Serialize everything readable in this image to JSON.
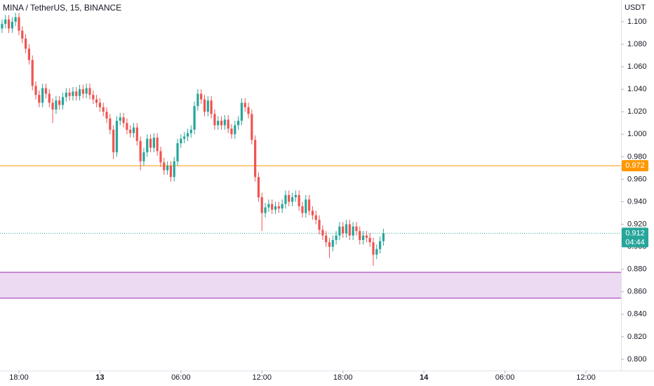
{
  "chart_data": {
    "type": "candlestick",
    "title": "MINA / TetherUS, 15, BINANCE",
    "unit": "USDT",
    "up_color": "#26a69a",
    "down_color": "#ef5350",
    "open": [
      1.094,
      1.098,
      1.102,
      1.094,
      1.1,
      1.104,
      1.092,
      1.085,
      1.076,
      1.066,
      1.043,
      1.035,
      1.028,
      1.041,
      1.036,
      1.028,
      1.022,
      1.03,
      1.026,
      1.033,
      1.037,
      1.034,
      1.038,
      1.034,
      1.04,
      1.036,
      1.041,
      1.035,
      1.031,
      1.028,
      1.024,
      1.02,
      1.014,
      1.004,
      0.984,
      1.012,
      1.015,
      1.01,
      1.004,
      1.001,
      1.006,
      0.994,
      0.976,
      0.984,
      0.996,
      0.988,
      0.997,
      0.985,
      0.975,
      0.968,
      0.972,
      0.962,
      0.976,
      0.992,
      0.996,
      0.998,
      1.001,
      1.004,
      1.025,
      1.036,
      1.031,
      1.02,
      1.03,
      1.018,
      1.008,
      1.012,
      1.008,
      1.013,
      1.005,
      1.0,
      1.008,
      1.012,
      1.028,
      1.024,
      1.018,
      0.995,
      0.962,
      0.944,
      0.93,
      0.935,
      0.938,
      0.933,
      0.936,
      0.934,
      0.938,
      0.946,
      0.94,
      0.944,
      0.946,
      0.936,
      0.93,
      0.942,
      0.932,
      0.928,
      0.924,
      0.915,
      0.91,
      0.904,
      0.9,
      0.906,
      0.91,
      0.918,
      0.912,
      0.92,
      0.91,
      0.918,
      0.914,
      0.906,
      0.91,
      0.908,
      0.904,
      0.893,
      0.898,
      0.905
    ],
    "high": [
      1.102,
      1.106,
      1.106,
      1.104,
      1.108,
      1.108,
      1.096,
      1.089,
      1.08,
      1.07,
      1.047,
      1.039,
      1.045,
      1.045,
      1.04,
      1.032,
      1.034,
      1.034,
      1.037,
      1.041,
      1.041,
      1.042,
      1.042,
      1.044,
      1.044,
      1.045,
      1.045,
      1.039,
      1.035,
      1.032,
      1.028,
      1.024,
      1.018,
      1.008,
      1.016,
      1.019,
      1.019,
      1.014,
      1.008,
      1.01,
      1.01,
      0.998,
      0.988,
      1.0,
      1.0,
      1.001,
      1.001,
      0.989,
      0.979,
      0.976,
      0.976,
      0.98,
      0.996,
      1.0,
      1.002,
      1.005,
      1.008,
      1.029,
      1.04,
      1.04,
      1.035,
      1.034,
      1.034,
      1.022,
      1.016,
      1.016,
      1.017,
      1.017,
      1.009,
      1.012,
      1.016,
      1.032,
      1.032,
      1.028,
      1.022,
      0.999,
      0.966,
      0.948,
      0.939,
      0.942,
      0.942,
      0.94,
      0.94,
      0.942,
      0.95,
      0.95,
      0.948,
      0.95,
      0.95,
      0.94,
      0.946,
      0.946,
      0.936,
      0.932,
      0.928,
      0.919,
      0.914,
      0.908,
      0.91,
      0.914,
      0.922,
      0.922,
      0.924,
      0.924,
      0.922,
      0.922,
      0.918,
      0.914,
      0.914,
      0.912,
      0.908,
      0.902,
      0.909,
      0.916
    ],
    "low": [
      1.09,
      1.094,
      1.09,
      1.09,
      1.096,
      1.088,
      1.081,
      1.072,
      1.062,
      1.039,
      1.031,
      1.024,
      1.024,
      1.032,
      1.024,
      1.01,
      1.018,
      1.022,
      1.022,
      1.029,
      1.03,
      1.03,
      1.03,
      1.03,
      1.032,
      1.032,
      1.031,
      1.027,
      1.024,
      1.02,
      1.016,
      1.01,
      1.0,
      0.978,
      0.98,
      1.008,
      1.006,
      1.0,
      0.997,
      0.997,
      0.99,
      0.968,
      0.972,
      0.98,
      0.984,
      0.984,
      0.981,
      0.971,
      0.964,
      0.964,
      0.958,
      0.958,
      0.972,
      0.988,
      0.992,
      0.994,
      0.997,
      1.0,
      1.021,
      1.027,
      1.016,
      1.016,
      1.014,
      1.004,
      1.004,
      1.004,
      1.004,
      1.001,
      0.996,
      0.996,
      1.004,
      1.008,
      1.02,
      1.014,
      0.991,
      0.958,
      0.94,
      0.914,
      0.926,
      0.931,
      0.929,
      0.929,
      0.93,
      0.93,
      0.934,
      0.936,
      0.936,
      0.94,
      0.932,
      0.926,
      0.926,
      0.928,
      0.924,
      0.92,
      0.911,
      0.906,
      0.9,
      0.89,
      0.896,
      0.902,
      0.906,
      0.908,
      0.908,
      0.906,
      0.906,
      0.91,
      0.902,
      0.902,
      0.904,
      0.9,
      0.883,
      0.889,
      0.894,
      0.901
    ],
    "close": [
      1.098,
      1.102,
      1.094,
      1.1,
      1.104,
      1.092,
      1.085,
      1.076,
      1.066,
      1.043,
      1.035,
      1.028,
      1.041,
      1.036,
      1.028,
      1.022,
      1.03,
      1.026,
      1.033,
      1.037,
      1.034,
      1.038,
      1.034,
      1.04,
      1.036,
      1.041,
      1.035,
      1.031,
      1.028,
      1.024,
      1.02,
      1.014,
      1.004,
      0.984,
      1.012,
      1.015,
      1.01,
      1.004,
      1.001,
      1.006,
      0.994,
      0.976,
      0.984,
      0.996,
      0.988,
      0.997,
      0.985,
      0.975,
      0.968,
      0.972,
      0.962,
      0.976,
      0.992,
      0.996,
      0.998,
      1.001,
      1.004,
      1.025,
      1.036,
      1.031,
      1.02,
      1.03,
      1.018,
      1.008,
      1.012,
      1.008,
      1.013,
      1.005,
      1.0,
      1.008,
      1.012,
      1.028,
      1.024,
      1.018,
      0.995,
      0.962,
      0.944,
      0.93,
      0.935,
      0.938,
      0.933,
      0.936,
      0.934,
      0.938,
      0.946,
      0.94,
      0.944,
      0.946,
      0.936,
      0.93,
      0.942,
      0.932,
      0.928,
      0.924,
      0.915,
      0.91,
      0.904,
      0.9,
      0.906,
      0.91,
      0.918,
      0.912,
      0.92,
      0.91,
      0.918,
      0.914,
      0.906,
      0.91,
      0.908,
      0.904,
      0.893,
      0.898,
      0.905,
      0.912
    ],
    "xlim": [
      -0.61,
      183.4
    ],
    "xticks": [
      {
        "value": 5,
        "label": "18:00"
      },
      {
        "value": 29,
        "label": "13"
      },
      {
        "value": 53,
        "label": "06:00"
      },
      {
        "value": 77,
        "label": "12:00"
      },
      {
        "value": 101,
        "label": "18:00"
      },
      {
        "value": 125,
        "label": "14"
      },
      {
        "value": 149,
        "label": "06:00"
      },
      {
        "value": 173,
        "label": "12:00"
      }
    ],
    "ylim": [
      0.79,
      1.1193
    ],
    "yticks": [
      {
        "value": 0.8,
        "label": "0.800"
      },
      {
        "value": 0.82,
        "label": "0.820"
      },
      {
        "value": 0.84,
        "label": "0.840"
      },
      {
        "value": 0.86,
        "label": "0.860"
      },
      {
        "value": 0.88,
        "label": "0.880"
      },
      {
        "value": 0.9,
        "label": "0.900"
      },
      {
        "value": 0.92,
        "label": "0.920"
      },
      {
        "value": 0.94,
        "label": "0.940"
      },
      {
        "value": 0.96,
        "label": "0.960"
      },
      {
        "value": 0.98,
        "label": "0.980"
      },
      {
        "value": 1.0,
        "label": "1.000"
      },
      {
        "value": 1.02,
        "label": "1.020"
      },
      {
        "value": 1.04,
        "label": "1.040"
      },
      {
        "value": 1.06,
        "label": "1.060"
      },
      {
        "value": 1.08,
        "label": "1.080"
      },
      {
        "value": 1.1,
        "label": "1.100"
      }
    ],
    "grid": false,
    "level_line": {
      "value": 0.972,
      "color": "#ff9800"
    },
    "zone": {
      "top": 0.8773,
      "bottom": 0.8543,
      "fill": "#e9d3f0",
      "stroke": "#9c27b0"
    },
    "last_price": {
      "value": 0.912,
      "countdown": "04:44",
      "color": "#26a69a"
    }
  }
}
